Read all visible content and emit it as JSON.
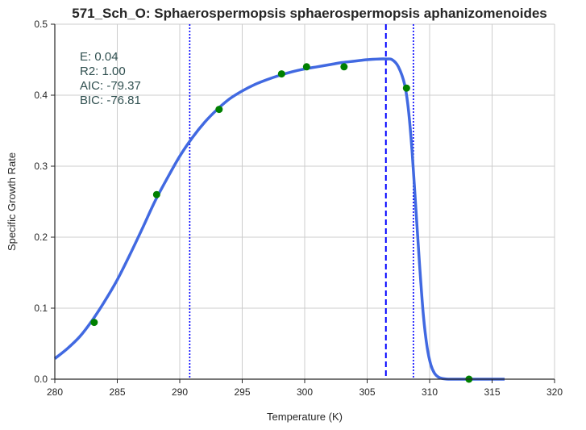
{
  "chart_data": {
    "type": "line",
    "title": "571_Sch_O: Sphaerospermopsis sphaerospermopsis aphanizomenoides",
    "xlabel": "Temperature (K)",
    "ylabel": "Specific Growth Rate",
    "xlim": [
      280,
      320
    ],
    "ylim": [
      0.0,
      0.5
    ],
    "xticks": [
      280,
      285,
      290,
      295,
      300,
      305,
      310,
      315,
      320
    ],
    "yticks": [
      0.0,
      0.1,
      0.2,
      0.3,
      0.4,
      0.5
    ],
    "grid": true,
    "stats": [
      {
        "label": "E:",
        "value": "0.04"
      },
      {
        "label": "R2:",
        "value": "1.00"
      },
      {
        "label": "AIC:",
        "value": "-79.37"
      },
      {
        "label": "BIC:",
        "value": "-76.81"
      }
    ],
    "observed": {
      "color": "#008000",
      "x": [
        283.15,
        288.15,
        293.15,
        298.15,
        300.15,
        303.15,
        308.15,
        313.15
      ],
      "y": [
        0.08,
        0.26,
        0.38,
        0.43,
        0.44,
        0.44,
        0.41,
        0.0
      ]
    },
    "fitted": {
      "color": "#4169e1",
      "x": [
        280,
        281,
        282,
        283,
        284,
        285,
        286,
        287,
        288,
        289,
        290,
        291,
        292,
        293,
        294,
        295,
        296,
        297,
        298,
        299,
        300,
        301,
        302,
        303,
        304,
        305,
        306,
        306.5,
        307,
        307.5,
        308,
        308.3,
        308.6,
        308.9,
        309.2,
        309.5,
        309.8,
        310.1,
        310.4,
        310.7,
        311,
        311.5,
        312,
        313,
        314,
        316
      ],
      "y": [
        0.029,
        0.043,
        0.06,
        0.083,
        0.11,
        0.14,
        0.175,
        0.212,
        0.25,
        0.283,
        0.314,
        0.34,
        0.362,
        0.38,
        0.395,
        0.406,
        0.415,
        0.422,
        0.428,
        0.433,
        0.437,
        0.44,
        0.443,
        0.446,
        0.448,
        0.45,
        0.451,
        0.451,
        0.45,
        0.44,
        0.415,
        0.38,
        0.32,
        0.24,
        0.16,
        0.09,
        0.045,
        0.02,
        0.008,
        0.003,
        0.001,
        0.0,
        0.0,
        0.0,
        0.0,
        0.0
      ]
    },
    "vlines": [
      {
        "x": 290.8,
        "style": "dotted",
        "color": "#0000ff"
      },
      {
        "x": 306.5,
        "style": "dashed",
        "color": "#0000ff"
      },
      {
        "x": 308.7,
        "style": "dotted",
        "color": "#0000ff"
      }
    ]
  }
}
